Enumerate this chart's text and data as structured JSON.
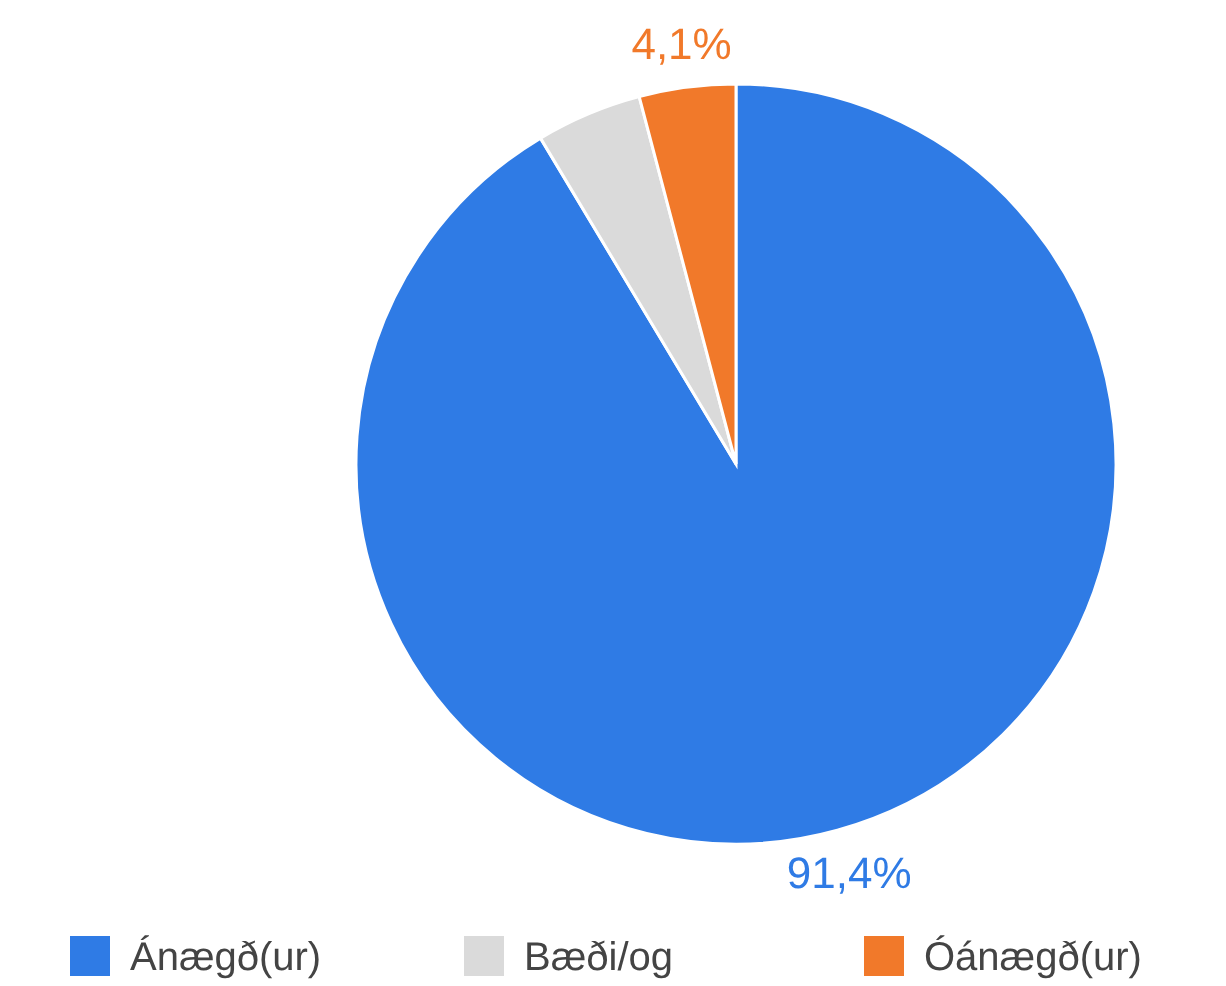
{
  "chart_data": {
    "type": "pie",
    "categories": [
      "Ánægð(ur)",
      "Bæði/og",
      "Óánægð(ur)"
    ],
    "values": [
      91.4,
      4.5,
      4.1
    ],
    "colors": [
      "#2f7be5",
      "#dadada",
      "#f1792a"
    ],
    "value_labels": [
      "91,4%",
      null,
      "4,1%"
    ],
    "legend": "bottom"
  }
}
